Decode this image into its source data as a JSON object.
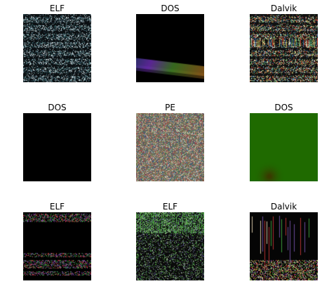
{
  "chart_data": {
    "type": "image_grid",
    "rows": 3,
    "cols": 3,
    "panels": [
      {
        "title": "ELF",
        "style": "stripes-dense",
        "colors": [
          "#0b0f12",
          "#3a6a6a",
          "#9fb3ba",
          "#2e4a5a",
          "#c9d6d8"
        ]
      },
      {
        "title": "DOS",
        "style": "dark-streak",
        "colors": [
          "#000000",
          "#6a2cae",
          "#3f7a24",
          "#1f3c66",
          "#8a5a1a"
        ]
      },
      {
        "title": "Dalvik",
        "style": "stripes-colorful",
        "colors": [
          "#111111",
          "#b3a45a",
          "#c04030",
          "#3d6a9a",
          "#5aa060",
          "#e0d8c0"
        ]
      },
      {
        "title": "DOS",
        "style": "solid",
        "colors": [
          "#000000"
        ]
      },
      {
        "title": "PE",
        "style": "noise",
        "colors": [
          "#7a6a5a",
          "#3a5a7a",
          "#a08a6a",
          "#5a7a4a",
          "#9a4a4a",
          "#c0c0b0"
        ]
      },
      {
        "title": "DOS",
        "style": "green-blob",
        "colors": [
          "#1f6a00",
          "#3a3a00"
        ]
      },
      {
        "title": "ELF",
        "style": "dark-bands",
        "colors": [
          "#000000",
          "#2a5a4a",
          "#7a3aa0",
          "#c04040",
          "#3a8a3a"
        ]
      },
      {
        "title": "ELF",
        "style": "top-stripes-noise",
        "colors": [
          "#0a0a0a",
          "#4aa040",
          "#2a3a2a",
          "#9ab08a",
          "#5a5a8a"
        ]
      },
      {
        "title": "Dalvik",
        "style": "vertical-bars",
        "colors": [
          "#050505",
          "#b03030",
          "#3a9a3a",
          "#b0a040",
          "#6a4a9a",
          "#d0c0a0"
        ]
      }
    ]
  }
}
